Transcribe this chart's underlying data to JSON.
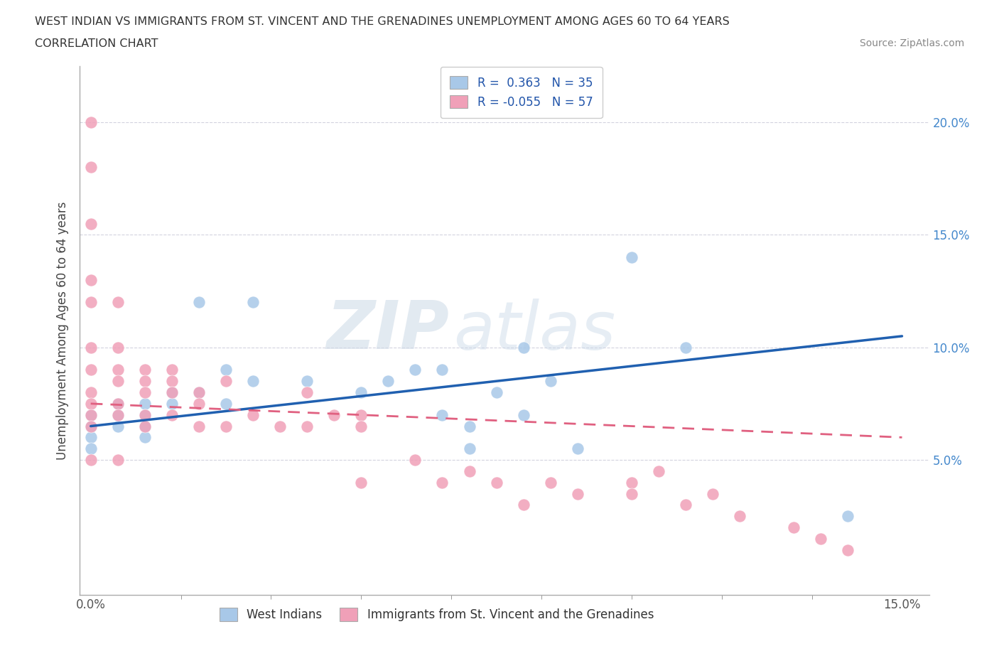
{
  "title_line1": "WEST INDIAN VS IMMIGRANTS FROM ST. VINCENT AND THE GRENADINES UNEMPLOYMENT AMONG AGES 60 TO 64 YEARS",
  "title_line2": "CORRELATION CHART",
  "source_text": "Source: ZipAtlas.com",
  "ylabel": "Unemployment Among Ages 60 to 64 years",
  "xlim": [
    -0.002,
    0.155
  ],
  "ylim": [
    -0.01,
    0.225
  ],
  "xticks": [
    0.0,
    0.15
  ],
  "xtick_labels": [
    "0.0%",
    "15.0%"
  ],
  "yticks": [
    0.05,
    0.1,
    0.15,
    0.2
  ],
  "ytick_labels": [
    "5.0%",
    "10.0%",
    "15.0%",
    "20.0%"
  ],
  "legend_labels": [
    "West Indians",
    "Immigrants from St. Vincent and the Grenadines"
  ],
  "blue_color": "#a8c8e8",
  "pink_color": "#f0a0b8",
  "blue_line_color": "#2060b0",
  "pink_line_color": "#e06080",
  "R_blue": 0.363,
  "N_blue": 35,
  "R_pink": -0.055,
  "N_pink": 57,
  "watermark_zip": "ZIP",
  "watermark_atlas": "atlas",
  "background_color": "#ffffff",
  "grid_color": "#c8c8d8",
  "blue_line_start_y": 0.065,
  "blue_line_end_y": 0.105,
  "pink_line_start_y": 0.075,
  "pink_line_end_y": 0.06,
  "blue_scatter_x": [
    0.0,
    0.0,
    0.0,
    0.0,
    0.005,
    0.005,
    0.005,
    0.01,
    0.01,
    0.01,
    0.01,
    0.015,
    0.015,
    0.02,
    0.02,
    0.025,
    0.025,
    0.03,
    0.03,
    0.04,
    0.05,
    0.055,
    0.06,
    0.065,
    0.065,
    0.07,
    0.07,
    0.075,
    0.08,
    0.08,
    0.085,
    0.09,
    0.1,
    0.11,
    0.14
  ],
  "blue_scatter_y": [
    0.07,
    0.065,
    0.06,
    0.055,
    0.075,
    0.07,
    0.065,
    0.075,
    0.07,
    0.065,
    0.06,
    0.08,
    0.075,
    0.08,
    0.12,
    0.075,
    0.09,
    0.085,
    0.12,
    0.085,
    0.08,
    0.085,
    0.09,
    0.09,
    0.07,
    0.055,
    0.065,
    0.08,
    0.1,
    0.07,
    0.085,
    0.055,
    0.14,
    0.1,
    0.025
  ],
  "pink_scatter_x": [
    0.0,
    0.0,
    0.0,
    0.0,
    0.0,
    0.0,
    0.0,
    0.0,
    0.0,
    0.0,
    0.0,
    0.0,
    0.005,
    0.005,
    0.005,
    0.005,
    0.005,
    0.005,
    0.005,
    0.01,
    0.01,
    0.01,
    0.01,
    0.01,
    0.015,
    0.015,
    0.015,
    0.015,
    0.02,
    0.02,
    0.02,
    0.025,
    0.025,
    0.03,
    0.035,
    0.04,
    0.04,
    0.045,
    0.05,
    0.05,
    0.05,
    0.06,
    0.065,
    0.07,
    0.075,
    0.08,
    0.085,
    0.09,
    0.1,
    0.1,
    0.105,
    0.11,
    0.115,
    0.12,
    0.13,
    0.135,
    0.14
  ],
  "pink_scatter_y": [
    0.2,
    0.18,
    0.155,
    0.13,
    0.12,
    0.1,
    0.09,
    0.08,
    0.075,
    0.07,
    0.065,
    0.05,
    0.12,
    0.1,
    0.09,
    0.085,
    0.075,
    0.07,
    0.05,
    0.09,
    0.085,
    0.08,
    0.07,
    0.065,
    0.09,
    0.085,
    0.08,
    0.07,
    0.08,
    0.075,
    0.065,
    0.085,
    0.065,
    0.07,
    0.065,
    0.08,
    0.065,
    0.07,
    0.07,
    0.065,
    0.04,
    0.05,
    0.04,
    0.045,
    0.04,
    0.03,
    0.04,
    0.035,
    0.04,
    0.035,
    0.045,
    0.03,
    0.035,
    0.025,
    0.02,
    0.015,
    0.01
  ]
}
